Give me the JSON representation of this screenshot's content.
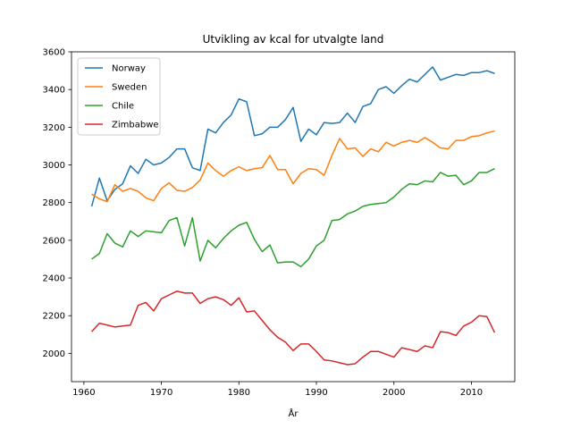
{
  "chart_data": {
    "type": "line",
    "title": "Utvikling av kcal for utvalgte land",
    "xlabel": "År",
    "ylabel": "",
    "xlim": [
      1958.4,
      2015.6
    ],
    "ylim": [
      1850,
      3600
    ],
    "xticks": [
      1960,
      1970,
      1980,
      1990,
      2000,
      2010
    ],
    "yticks": [
      2000,
      2200,
      2400,
      2600,
      2800,
      3000,
      3200,
      3400,
      3600
    ],
    "grid": false,
    "legend_position": "upper left",
    "x": [
      1961,
      1962,
      1963,
      1964,
      1965,
      1966,
      1967,
      1968,
      1969,
      1970,
      1971,
      1972,
      1973,
      1974,
      1975,
      1976,
      1977,
      1978,
      1979,
      1980,
      1981,
      1982,
      1983,
      1984,
      1985,
      1986,
      1987,
      1988,
      1989,
      1990,
      1991,
      1992,
      1993,
      1994,
      1995,
      1996,
      1997,
      1998,
      1999,
      2000,
      2001,
      2002,
      2003,
      2004,
      2005,
      2006,
      2007,
      2008,
      2009,
      2010,
      2011,
      2012,
      2013
    ],
    "series": [
      {
        "name": "Norway",
        "color": "#1f77b4",
        "values": [
          2780,
          2930,
          2810,
          2870,
          2900,
          2995,
          2955,
          3030,
          3000,
          3010,
          3040,
          3085,
          3085,
          2985,
          2970,
          3190,
          3170,
          3225,
          3265,
          3350,
          3335,
          3155,
          3165,
          3200,
          3200,
          3240,
          3305,
          3125,
          3190,
          3160,
          3225,
          3220,
          3225,
          3275,
          3225,
          3310,
          3325,
          3400,
          3415,
          3380,
          3420,
          3455,
          3440,
          3480,
          3520,
          3450,
          3465,
          3480,
          3475,
          3490,
          3490,
          3500,
          3485
        ]
      },
      {
        "name": "Sweden",
        "color": "#ff7f0e",
        "values": [
          2845,
          2820,
          2805,
          2895,
          2860,
          2875,
          2860,
          2825,
          2810,
          2875,
          2905,
          2865,
          2860,
          2880,
          2920,
          3010,
          2970,
          2940,
          2970,
          2990,
          2970,
          2980,
          2985,
          3050,
          2975,
          2975,
          2900,
          2955,
          2980,
          2975,
          2945,
          3050,
          3140,
          3085,
          3090,
          3045,
          3085,
          3070,
          3120,
          3100,
          3120,
          3130,
          3120,
          3145,
          3120,
          3090,
          3085,
          3130,
          3130,
          3150,
          3155,
          3170,
          3180
        ]
      },
      {
        "name": "Chile",
        "color": "#2ca02c",
        "values": [
          2500,
          2530,
          2635,
          2585,
          2565,
          2650,
          2620,
          2650,
          2645,
          2640,
          2705,
          2720,
          2570,
          2720,
          2490,
          2600,
          2560,
          2610,
          2650,
          2680,
          2695,
          2605,
          2540,
          2575,
          2480,
          2485,
          2485,
          2460,
          2500,
          2570,
          2600,
          2705,
          2710,
          2740,
          2755,
          2780,
          2790,
          2795,
          2800,
          2830,
          2870,
          2900,
          2895,
          2915,
          2910,
          2960,
          2940,
          2945,
          2895,
          2915,
          2960,
          2960,
          2980
        ]
      },
      {
        "name": "Zimbabwe",
        "color": "#d62728",
        "values": [
          2115,
          2160,
          2150,
          2140,
          2145,
          2150,
          2255,
          2270,
          2225,
          2290,
          2310,
          2330,
          2320,
          2320,
          2265,
          2290,
          2300,
          2285,
          2255,
          2295,
          2220,
          2225,
          2175,
          2125,
          2085,
          2060,
          2015,
          2050,
          2050,
          2010,
          1965,
          1960,
          1950,
          1940,
          1945,
          1980,
          2010,
          2010,
          1995,
          1980,
          2030,
          2020,
          2010,
          2040,
          2030,
          2115,
          2110,
          2095,
          2145,
          2165,
          2200,
          2195,
          2110
        ]
      }
    ]
  }
}
